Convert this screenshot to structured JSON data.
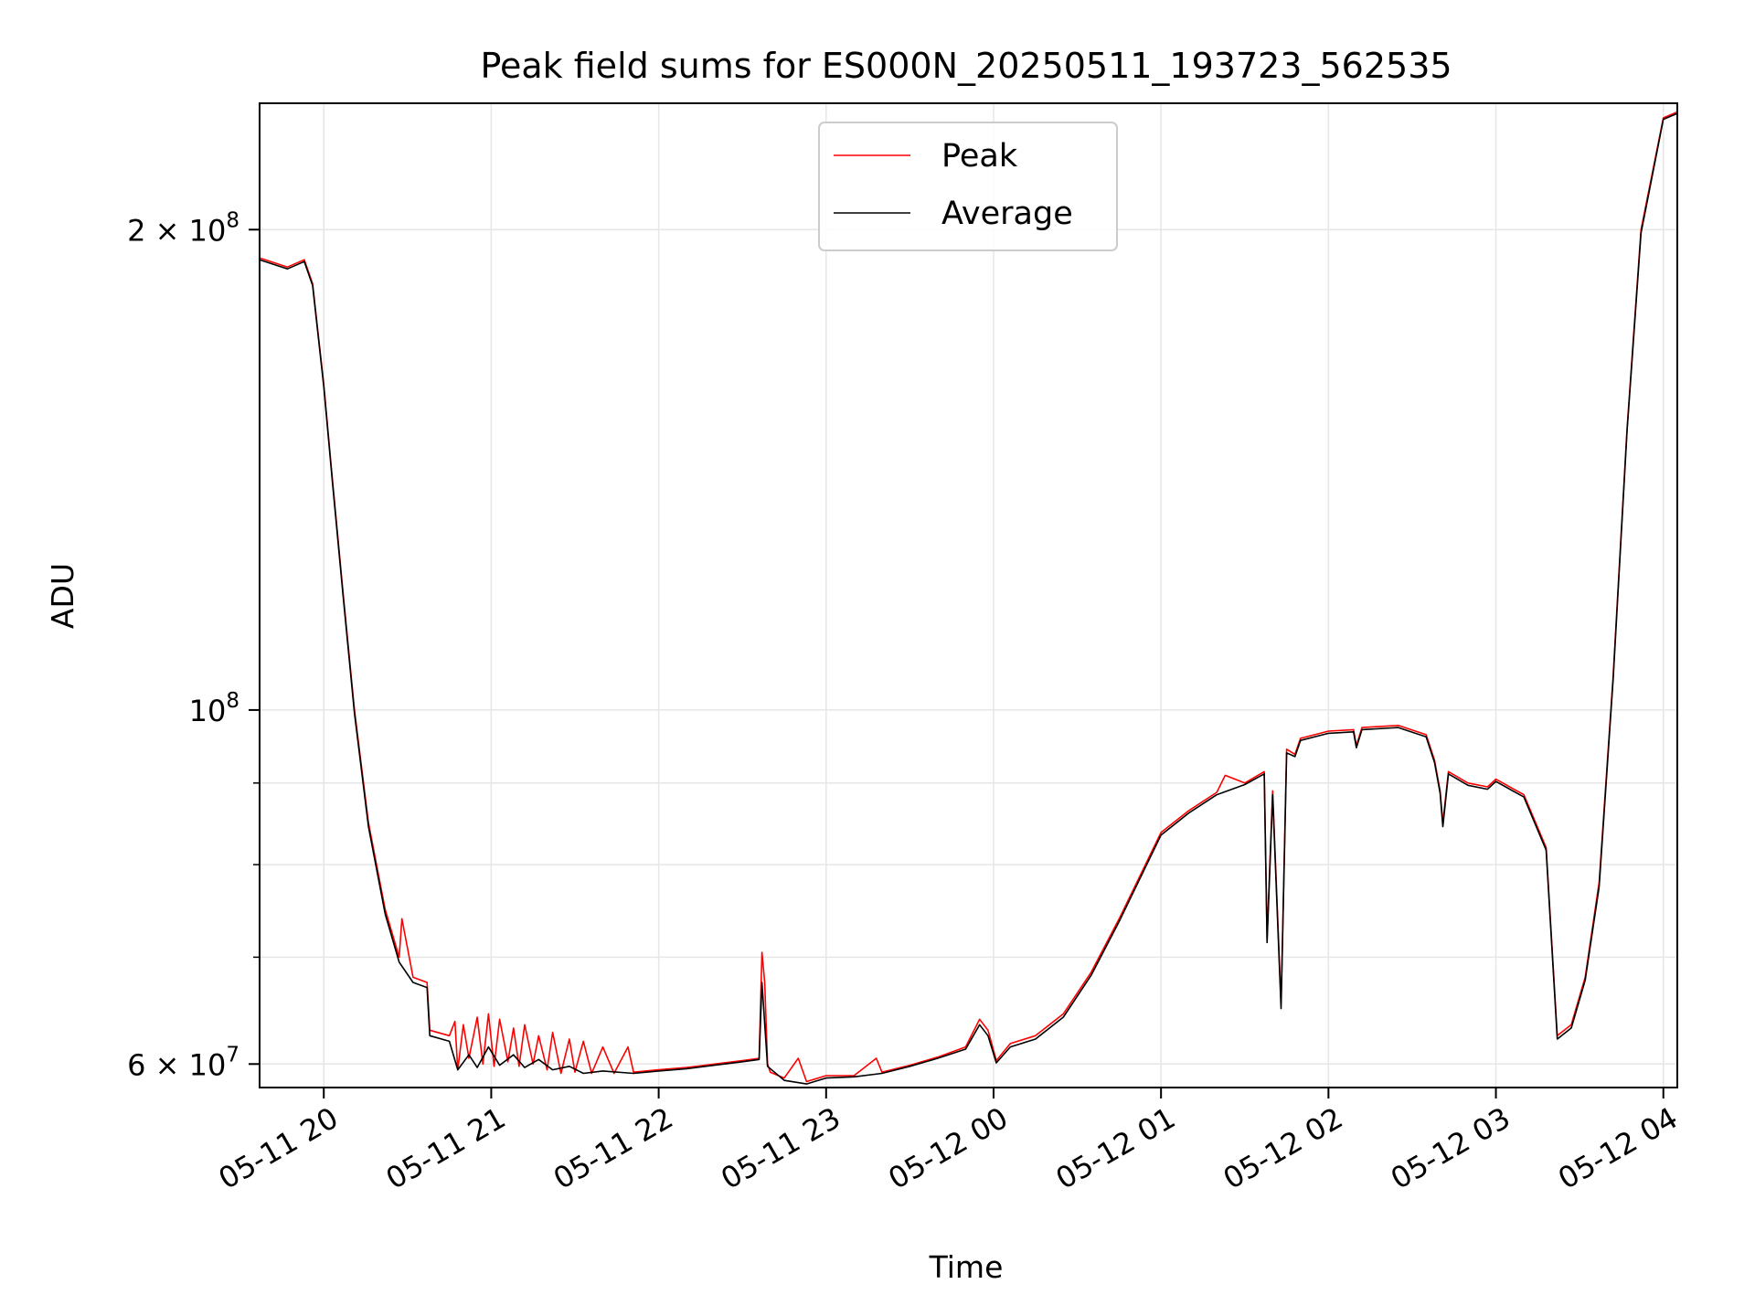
{
  "chart_data": {
    "type": "line",
    "title": "Peak field sums for ES000N_20250511_193723_562535",
    "xlabel": "Time",
    "ylabel": "ADU",
    "yscale": "log",
    "xlim": [
      "2025-05-11 19:37",
      "2025-05-12 04:05"
    ],
    "ylim": [
      58000000,
      240000000
    ],
    "grid": true,
    "legend_placement": "upper center",
    "x_ticks": [
      {
        "value": "2025-05-11 20:00",
        "label": "05-11 20"
      },
      {
        "value": "2025-05-11 21:00",
        "label": "05-11 21"
      },
      {
        "value": "2025-05-11 22:00",
        "label": "05-11 22"
      },
      {
        "value": "2025-05-11 23:00",
        "label": "05-11 23"
      },
      {
        "value": "2025-05-12 00:00",
        "label": "05-12 00"
      },
      {
        "value": "2025-05-12 01:00",
        "label": "05-12 01"
      },
      {
        "value": "2025-05-12 02:00",
        "label": "05-12 02"
      },
      {
        "value": "2025-05-12 03:00",
        "label": "05-12 03"
      },
      {
        "value": "2025-05-12 04:00",
        "label": "05-12 04"
      }
    ],
    "y_ticks": [
      {
        "value": 60000000,
        "label_base": "6 × 10",
        "label_exp": "7"
      },
      {
        "value": 100000000,
        "label_base": "10",
        "label_exp": "8"
      },
      {
        "value": 200000000,
        "label_base": "2 × 10",
        "label_exp": "8"
      }
    ],
    "y_minor_ticks": [
      70000000,
      80000000,
      90000000
    ],
    "series": [
      {
        "name": "Peak",
        "color": "#ff0000",
        "points": [
          [
            "2025-05-11 19:37",
            192000000
          ],
          [
            "2025-05-11 19:47",
            189500000
          ],
          [
            "2025-05-11 19:53",
            191500000
          ],
          [
            "2025-05-11 19:56",
            185000000
          ],
          [
            "2025-05-11 20:00",
            160000000
          ],
          [
            "2025-05-11 20:03",
            140000000
          ],
          [
            "2025-05-11 20:07",
            118000000
          ],
          [
            "2025-05-11 20:11",
            100000000
          ],
          [
            "2025-05-11 20:16",
            85000000
          ],
          [
            "2025-05-11 20:22",
            75000000
          ],
          [
            "2025-05-11 20:27",
            70000000
          ],
          [
            "2025-05-11 20:28",
            74000000
          ],
          [
            "2025-05-11 20:32",
            68000000
          ],
          [
            "2025-05-11 20:37",
            67500000
          ],
          [
            "2025-05-11 20:38",
            63000000
          ],
          [
            "2025-05-11 20:45",
            62500000
          ],
          [
            "2025-05-11 20:47",
            63800000
          ],
          [
            "2025-05-11 20:48",
            59500000
          ],
          [
            "2025-05-11 20:50",
            63500000
          ],
          [
            "2025-05-11 20:52",
            60500000
          ],
          [
            "2025-05-11 20:55",
            64200000
          ],
          [
            "2025-05-11 20:57",
            60000000
          ],
          [
            "2025-05-11 20:59",
            64500000
          ],
          [
            "2025-05-11 21:01",
            59800000
          ],
          [
            "2025-05-11 21:03",
            64000000
          ],
          [
            "2025-05-11 21:06",
            60200000
          ],
          [
            "2025-05-11 21:08",
            63200000
          ],
          [
            "2025-05-11 21:10",
            59800000
          ],
          [
            "2025-05-11 21:12",
            63500000
          ],
          [
            "2025-05-11 21:15",
            60000000
          ],
          [
            "2025-05-11 21:17",
            62500000
          ],
          [
            "2025-05-11 21:20",
            59500000
          ],
          [
            "2025-05-11 21:22",
            62800000
          ],
          [
            "2025-05-11 21:25",
            59200000
          ],
          [
            "2025-05-11 21:28",
            62200000
          ],
          [
            "2025-05-11 21:30",
            59300000
          ],
          [
            "2025-05-11 21:33",
            62000000
          ],
          [
            "2025-05-11 21:36",
            59200000
          ],
          [
            "2025-05-11 21:40",
            61500000
          ],
          [
            "2025-05-11 21:44",
            59200000
          ],
          [
            "2025-05-11 21:49",
            61500000
          ],
          [
            "2025-05-11 21:51",
            59300000
          ],
          [
            "2025-05-11 22:00",
            59500000
          ],
          [
            "2025-05-11 22:10",
            59700000
          ],
          [
            "2025-05-11 22:20",
            60000000
          ],
          [
            "2025-05-11 22:30",
            60300000
          ],
          [
            "2025-05-11 22:36",
            60500000
          ],
          [
            "2025-05-11 22:37",
            70500000
          ],
          [
            "2025-05-11 22:38",
            67500000
          ],
          [
            "2025-05-11 22:39",
            60000000
          ],
          [
            "2025-05-11 22:40",
            59300000
          ],
          [
            "2025-05-11 22:45",
            58800000
          ],
          [
            "2025-05-11 22:50",
            60500000
          ],
          [
            "2025-05-11 22:53",
            58500000
          ],
          [
            "2025-05-11 23:00",
            59000000
          ],
          [
            "2025-05-11 23:10",
            59000000
          ],
          [
            "2025-05-11 23:18",
            60500000
          ],
          [
            "2025-05-11 23:20",
            59300000
          ],
          [
            "2025-05-11 23:30",
            59900000
          ],
          [
            "2025-05-11 23:40",
            60600000
          ],
          [
            "2025-05-11 23:50",
            61500000
          ],
          [
            "2025-05-11 23:55",
            64000000
          ],
          [
            "2025-05-11 23:58",
            63000000
          ],
          [
            "2025-05-12 00:01",
            60300000
          ],
          [
            "2025-05-12 00:06",
            61800000
          ],
          [
            "2025-05-12 00:15",
            62500000
          ],
          [
            "2025-05-12 00:25",
            64500000
          ],
          [
            "2025-05-12 00:35",
            68500000
          ],
          [
            "2025-05-12 00:45",
            74000000
          ],
          [
            "2025-05-12 01:00",
            83800000
          ],
          [
            "2025-05-12 01:10",
            86500000
          ],
          [
            "2025-05-12 01:20",
            88800000
          ],
          [
            "2025-05-12 01:23",
            91000000
          ],
          [
            "2025-05-12 01:30",
            90000000
          ],
          [
            "2025-05-12 01:37",
            91500000
          ],
          [
            "2025-05-12 01:38",
            72000000
          ],
          [
            "2025-05-12 01:40",
            89000000
          ],
          [
            "2025-05-12 01:43",
            65500000
          ],
          [
            "2025-05-12 01:45",
            94500000
          ],
          [
            "2025-05-12 01:48",
            93800000
          ],
          [
            "2025-05-12 01:50",
            96000000
          ],
          [
            "2025-05-12 02:00",
            97000000
          ],
          [
            "2025-05-12 02:09",
            97200000
          ],
          [
            "2025-05-12 02:10",
            95000000
          ],
          [
            "2025-05-12 02:12",
            97500000
          ],
          [
            "2025-05-12 02:25",
            97800000
          ],
          [
            "2025-05-12 02:35",
            96500000
          ],
          [
            "2025-05-12 02:38",
            93000000
          ],
          [
            "2025-05-12 02:40",
            89000000
          ],
          [
            "2025-05-12 02:41",
            85000000
          ],
          [
            "2025-05-12 02:43",
            91500000
          ],
          [
            "2025-05-12 02:50",
            90000000
          ],
          [
            "2025-05-12 02:57",
            89500000
          ],
          [
            "2025-05-12 03:00",
            90500000
          ],
          [
            "2025-05-12 03:10",
            88500000
          ],
          [
            "2025-05-12 03:18",
            82000000
          ],
          [
            "2025-05-12 03:22",
            62500000
          ],
          [
            "2025-05-12 03:27",
            63500000
          ],
          [
            "2025-05-12 03:32",
            68000000
          ],
          [
            "2025-05-12 03:37",
            78000000
          ],
          [
            "2025-05-12 03:42",
            105000000
          ],
          [
            "2025-05-12 03:47",
            150000000
          ],
          [
            "2025-05-12 03:52",
            200000000
          ],
          [
            "2025-05-12 04:00",
            235000000
          ],
          [
            "2025-05-12 04:05",
            237000000
          ]
        ]
      },
      {
        "name": "Average",
        "color": "#000000",
        "points": [
          [
            "2025-05-11 19:37",
            191500000
          ],
          [
            "2025-05-11 19:47",
            189000000
          ],
          [
            "2025-05-11 19:53",
            191000000
          ],
          [
            "2025-05-11 19:56",
            184500000
          ],
          [
            "2025-05-11 20:00",
            159500000
          ],
          [
            "2025-05-11 20:03",
            139500000
          ],
          [
            "2025-05-11 20:07",
            117500000
          ],
          [
            "2025-05-11 20:11",
            99500000
          ],
          [
            "2025-05-11 20:16",
            84500000
          ],
          [
            "2025-05-11 20:22",
            74500000
          ],
          [
            "2025-05-11 20:27",
            69500000
          ],
          [
            "2025-05-11 20:32",
            67500000
          ],
          [
            "2025-05-11 20:37",
            67000000
          ],
          [
            "2025-05-11 20:38",
            62500000
          ],
          [
            "2025-05-11 20:45",
            62000000
          ],
          [
            "2025-05-11 20:48",
            59500000
          ],
          [
            "2025-05-11 20:52",
            60800000
          ],
          [
            "2025-05-11 20:55",
            59700000
          ],
          [
            "2025-05-11 20:59",
            61500000
          ],
          [
            "2025-05-11 21:03",
            59900000
          ],
          [
            "2025-05-11 21:08",
            60800000
          ],
          [
            "2025-05-11 21:12",
            59700000
          ],
          [
            "2025-05-11 21:17",
            60400000
          ],
          [
            "2025-05-11 21:22",
            59500000
          ],
          [
            "2025-05-11 21:28",
            59800000
          ],
          [
            "2025-05-11 21:33",
            59200000
          ],
          [
            "2025-05-11 21:40",
            59400000
          ],
          [
            "2025-05-11 21:51",
            59200000
          ],
          [
            "2025-05-11 22:00",
            59400000
          ],
          [
            "2025-05-11 22:10",
            59600000
          ],
          [
            "2025-05-11 22:20",
            59900000
          ],
          [
            "2025-05-11 22:30",
            60200000
          ],
          [
            "2025-05-11 22:36",
            60400000
          ],
          [
            "2025-05-11 22:37",
            67500000
          ],
          [
            "2025-05-11 22:39",
            59800000
          ],
          [
            "2025-05-11 22:45",
            58600000
          ],
          [
            "2025-05-11 22:53",
            58300000
          ],
          [
            "2025-05-11 23:00",
            58800000
          ],
          [
            "2025-05-11 23:10",
            58900000
          ],
          [
            "2025-05-11 23:20",
            59200000
          ],
          [
            "2025-05-11 23:30",
            59800000
          ],
          [
            "2025-05-11 23:40",
            60500000
          ],
          [
            "2025-05-11 23:50",
            61300000
          ],
          [
            "2025-05-11 23:55",
            63500000
          ],
          [
            "2025-05-11 23:58",
            62500000
          ],
          [
            "2025-05-12 00:01",
            60100000
          ],
          [
            "2025-05-12 00:06",
            61500000
          ],
          [
            "2025-05-12 00:15",
            62200000
          ],
          [
            "2025-05-12 00:25",
            64200000
          ],
          [
            "2025-05-12 00:35",
            68200000
          ],
          [
            "2025-05-12 00:45",
            73700000
          ],
          [
            "2025-05-12 01:00",
            83500000
          ],
          [
            "2025-05-12 01:10",
            86200000
          ],
          [
            "2025-05-12 01:20",
            88500000
          ],
          [
            "2025-05-12 01:30",
            89800000
          ],
          [
            "2025-05-12 01:37",
            91200000
          ],
          [
            "2025-05-12 01:38",
            71500000
          ],
          [
            "2025-05-12 01:40",
            88500000
          ],
          [
            "2025-05-12 01:43",
            65000000
          ],
          [
            "2025-05-12 01:45",
            94000000
          ],
          [
            "2025-05-12 01:48",
            93500000
          ],
          [
            "2025-05-12 01:50",
            95700000
          ],
          [
            "2025-05-12 02:00",
            96700000
          ],
          [
            "2025-05-12 02:09",
            96900000
          ],
          [
            "2025-05-12 02:10",
            94700000
          ],
          [
            "2025-05-12 02:12",
            97200000
          ],
          [
            "2025-05-12 02:25",
            97500000
          ],
          [
            "2025-05-12 02:35",
            96200000
          ],
          [
            "2025-05-12 02:38",
            92700000
          ],
          [
            "2025-05-12 02:40",
            88700000
          ],
          [
            "2025-05-12 02:41",
            84500000
          ],
          [
            "2025-05-12 02:43",
            91200000
          ],
          [
            "2025-05-12 02:50",
            89700000
          ],
          [
            "2025-05-12 02:57",
            89200000
          ],
          [
            "2025-05-12 03:00",
            90200000
          ],
          [
            "2025-05-12 03:10",
            88200000
          ],
          [
            "2025-05-12 03:18",
            81700000
          ],
          [
            "2025-05-12 03:22",
            62200000
          ],
          [
            "2025-05-12 03:27",
            63200000
          ],
          [
            "2025-05-12 03:32",
            67700000
          ],
          [
            "2025-05-12 03:37",
            77500000
          ],
          [
            "2025-05-12 03:42",
            104500000
          ],
          [
            "2025-05-12 03:47",
            149500000
          ],
          [
            "2025-05-12 03:52",
            199000000
          ],
          [
            "2025-05-12 04:00",
            234500000
          ],
          [
            "2025-05-12 04:05",
            236500000
          ]
        ]
      }
    ]
  }
}
